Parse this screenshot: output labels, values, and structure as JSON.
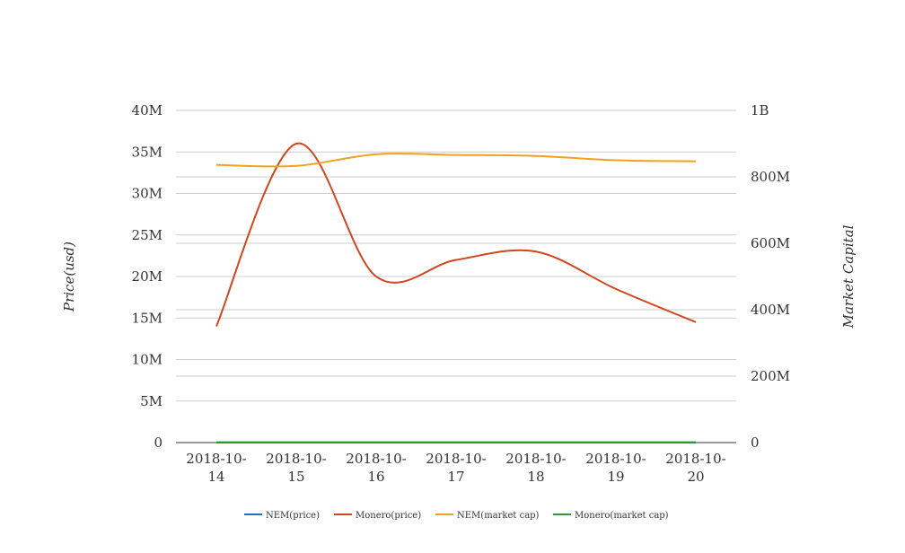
{
  "chart_data": {
    "type": "line",
    "categories": [
      "2018-10-14",
      "2018-10-15",
      "2018-10-16",
      "2018-10-17",
      "2018-10-18",
      "2018-10-19",
      "2018-10-20"
    ],
    "category_lines": [
      [
        "2018-10-",
        "14"
      ],
      [
        "2018-10-",
        "15"
      ],
      [
        "2018-10-",
        "16"
      ],
      [
        "2018-10-",
        "17"
      ],
      [
        "2018-10-",
        "18"
      ],
      [
        "2018-10-",
        "19"
      ],
      [
        "2018-10-",
        "20"
      ]
    ],
    "left_axis": {
      "label": "Price(usd)",
      "range": [
        0,
        40000000
      ],
      "ticks": [
        0,
        5000000,
        10000000,
        15000000,
        20000000,
        25000000,
        30000000,
        35000000,
        40000000
      ],
      "tick_labels": [
        "0",
        "5M",
        "10M",
        "15M",
        "20M",
        "25M",
        "30M",
        "35M",
        "40M"
      ]
    },
    "right_axis": {
      "label": "Market Capital",
      "range": [
        0,
        1000000000
      ],
      "ticks": [
        0,
        200000000,
        400000000,
        600000000,
        800000000,
        1000000000
      ],
      "tick_labels": [
        "0",
        "200M",
        "400M",
        "600M",
        "800M",
        "1B"
      ]
    },
    "series": [
      {
        "name": "NEM(price)",
        "axis": "left",
        "color": "#1f6fc2",
        "values": [
          0.1,
          0.1,
          0.1,
          0.1,
          0.1,
          0.1,
          0.1
        ]
      },
      {
        "name": "Monero(price)",
        "axis": "left",
        "color": "#d2451e",
        "values": [
          14000000,
          36000000,
          20000000,
          22000000,
          23000000,
          18500000,
          14500000
        ]
      },
      {
        "name": "NEM(market cap)",
        "axis": "right",
        "color": "#f2a11f",
        "values": [
          836000000,
          833000000,
          868000000,
          866000000,
          863000000,
          850000000,
          847000000
        ]
      },
      {
        "name": "Monero(market cap)",
        "axis": "right",
        "color": "#2a9a3a",
        "values": [
          1000000,
          1000000,
          1000000,
          1000000,
          1000000,
          1000000,
          1000000
        ]
      }
    ],
    "grid": true,
    "legend_position": "bottom"
  }
}
